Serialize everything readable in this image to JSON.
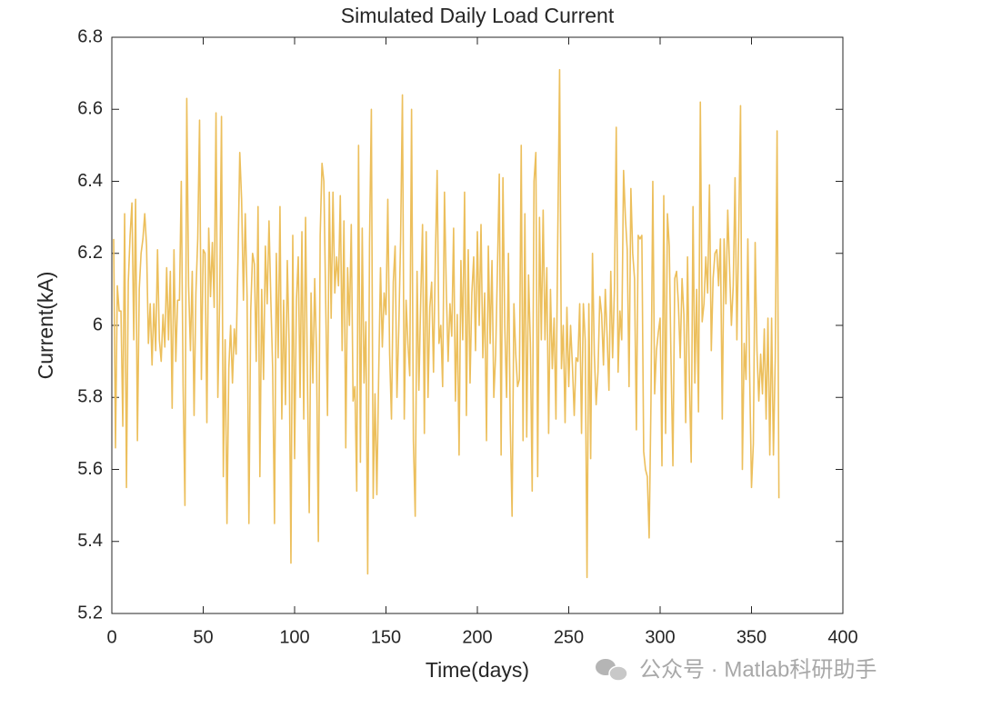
{
  "chart_data": {
    "type": "line",
    "title": "Simulated Daily Load Current",
    "x_label": "Time(days)",
    "y_label": "Current(kA)",
    "watermark": "公众号 · Matlab科研助手",
    "color": "#ecbf5c",
    "xlim": [
      0,
      400
    ],
    "xticks": [
      0,
      50,
      100,
      150,
      200,
      250,
      300,
      350,
      400
    ],
    "ylim": [
      5.2,
      6.8
    ],
    "yticks": [
      5.2,
      5.4,
      5.6,
      5.8,
      6,
      6.2,
      6.4,
      6.6,
      6.8
    ],
    "x": [
      1,
      2,
      3,
      4,
      5,
      6,
      7,
      8,
      9,
      10,
      11,
      12,
      13,
      14,
      15,
      16,
      17,
      18,
      19,
      20,
      21,
      22,
      23,
      24,
      25,
      26,
      27,
      28,
      29,
      30,
      31,
      32,
      33,
      34,
      35,
      36,
      37,
      38,
      39,
      40,
      41,
      42,
      43,
      44,
      45,
      46,
      47,
      48,
      49,
      50,
      51,
      52,
      53,
      54,
      55,
      56,
      57,
      58,
      59,
      60,
      61,
      62,
      63,
      64,
      65,
      66,
      67,
      68,
      69,
      70,
      71,
      72,
      73,
      74,
      75,
      76,
      77,
      78,
      79,
      80,
      81,
      82,
      83,
      84,
      85,
      86,
      87,
      88,
      89,
      90,
      91,
      92,
      93,
      94,
      95,
      96,
      97,
      98,
      99,
      100,
      101,
      102,
      103,
      104,
      105,
      106,
      107,
      108,
      109,
      110,
      111,
      112,
      113,
      114,
      115,
      116,
      117,
      118,
      119,
      120,
      121,
      122,
      123,
      124,
      125,
      126,
      127,
      128,
      129,
      130,
      131,
      132,
      133,
      134,
      135,
      136,
      137,
      138,
      139,
      140,
      141,
      142,
      143,
      144,
      145,
      146,
      147,
      148,
      149,
      150,
      151,
      152,
      153,
      154,
      155,
      156,
      157,
      158,
      159,
      160,
      161,
      162,
      163,
      164,
      165,
      166,
      167,
      168,
      169,
      170,
      171,
      172,
      173,
      174,
      175,
      176,
      177,
      178,
      179,
      180,
      181,
      182,
      183,
      184,
      185,
      186,
      187,
      188,
      189,
      190,
      191,
      192,
      193,
      194,
      195,
      196,
      197,
      198,
      199,
      200,
      201,
      202,
      203,
      204,
      205,
      206,
      207,
      208,
      209,
      210,
      211,
      212,
      213,
      214,
      215,
      216,
      217,
      218,
      219,
      220,
      221,
      222,
      223,
      224,
      225,
      226,
      227,
      228,
      229,
      230,
      231,
      232,
      233,
      234,
      235,
      236,
      237,
      238,
      239,
      240,
      241,
      242,
      243,
      244,
      245,
      246,
      247,
      248,
      249,
      250,
      251,
      252,
      253,
      254,
      255,
      256,
      257,
      258,
      259,
      260,
      261,
      262,
      263,
      264,
      265,
      266,
      267,
      268,
      269,
      270,
      271,
      272,
      273,
      274,
      275,
      276,
      277,
      278,
      279,
      280,
      281,
      282,
      283,
      284,
      285,
      286,
      287,
      288,
      289,
      290,
      291,
      292,
      293,
      294,
      295,
      296,
      297,
      298,
      299,
      300,
      301,
      302,
      303,
      304,
      305,
      306,
      307,
      308,
      309,
      310,
      311,
      312,
      313,
      314,
      315,
      316,
      317,
      318,
      319,
      320,
      321,
      322,
      323,
      324,
      325,
      326,
      327,
      328,
      329,
      330,
      331,
      332,
      333,
      334,
      335,
      336,
      337,
      338,
      339,
      340,
      341,
      342,
      343,
      344,
      345,
      346,
      347,
      348,
      349,
      350,
      351,
      352,
      353,
      354,
      355,
      356,
      357,
      358,
      359,
      360,
      361,
      362,
      363,
      364,
      365
    ],
    "values": [
      6.24,
      5.66,
      6.11,
      6.04,
      6.04,
      5.72,
      6.31,
      5.55,
      6.12,
      6.25,
      6.34,
      5.96,
      6.35,
      5.68,
      6.1,
      6.2,
      6.24,
      6.31,
      6.22,
      5.95,
      6.06,
      5.89,
      6.06,
      5.93,
      6.21,
      5.96,
      5.9,
      6.03,
      5.94,
      6.16,
      5.96,
      6.15,
      5.77,
      6.21,
      5.9,
      6.07,
      6.07,
      6.4,
      5.83,
      5.5,
      6.63,
      6.11,
      5.93,
      6.15,
      5.75,
      6.09,
      6.24,
      6.57,
      5.85,
      6.21,
      6.2,
      5.73,
      6.27,
      6.08,
      6.23,
      6.05,
      6.59,
      5.8,
      6.07,
      6.58,
      5.58,
      5.96,
      5.45,
      5.88,
      6.0,
      5.84,
      5.99,
      5.92,
      6.18,
      6.48,
      6.35,
      6.07,
      6.31,
      6.08,
      5.45,
      6.04,
      6.2,
      6.17,
      5.9,
      6.33,
      5.58,
      6.1,
      5.85,
      6.22,
      6.06,
      6.29,
      6.07,
      5.88,
      5.45,
      6.2,
      5.91,
      6.33,
      5.74,
      6.07,
      5.78,
      6.18,
      5.95,
      5.34,
      6.25,
      5.63,
      6.07,
      6.19,
      5.8,
      6.26,
      5.74,
      6.3,
      5.86,
      5.48,
      6.09,
      5.84,
      6.13,
      5.92,
      5.4,
      6.25,
      6.45,
      6.4,
      6.07,
      5.75,
      6.37,
      6.02,
      6.37,
      6.09,
      6.19,
      6.11,
      6.36,
      5.93,
      6.29,
      5.66,
      6.16,
      6.0,
      6.28,
      5.79,
      5.83,
      5.54,
      6.5,
      5.62,
      6.27,
      5.84,
      6.01,
      5.31,
      6.23,
      6.6,
      5.52,
      5.81,
      5.53,
      5.86,
      6.16,
      5.94,
      6.09,
      6.03,
      6.35,
      5.92,
      5.74,
      6.12,
      6.22,
      5.8,
      5.99,
      6.24,
      6.64,
      5.74,
      6.07,
      5.95,
      5.86,
      6.6,
      5.68,
      5.47,
      6.15,
      5.82,
      6.07,
      6.28,
      5.7,
      6.26,
      5.8,
      6.05,
      6.12,
      5.87,
      6.18,
      6.43,
      5.95,
      6.0,
      5.83,
      6.37,
      6.1,
      5.9,
      6.06,
      5.97,
      6.27,
      5.79,
      6.03,
      5.64,
      6.18,
      5.96,
      6.37,
      5.75,
      6.21,
      5.84,
      6.09,
      6.19,
      5.93,
      6.26,
      6.0,
      6.28,
      5.91,
      6.09,
      5.68,
      6.22,
      5.95,
      6.18,
      5.8,
      5.92,
      6.16,
      6.42,
      5.64,
      6.41,
      6.0,
      5.8,
      6.2,
      5.73,
      5.47,
      6.06,
      5.92,
      5.83,
      5.85,
      6.5,
      5.68,
      6.31,
      5.69,
      6.14,
      5.95,
      5.54,
      6.4,
      6.48,
      5.58,
      6.3,
      5.96,
      6.32,
      5.96,
      6.16,
      5.7,
      6.1,
      5.88,
      6.02,
      5.74,
      6.25,
      6.71,
      5.88,
      6.0,
      5.73,
      6.05,
      5.83,
      6.0,
      5.89,
      5.75,
      5.91,
      5.9,
      6.06,
      5.7,
      6.06,
      5.96,
      5.3,
      6.06,
      5.63,
      6.2,
      5.92,
      5.78,
      5.87,
      6.08,
      6.03,
      5.89,
      6.1,
      5.97,
      5.82,
      6.15,
      5.91,
      6.1,
      6.55,
      5.87,
      6.04,
      5.96,
      6.43,
      6.3,
      6.21,
      5.83,
      6.38,
      6.2,
      6.13,
      5.71,
      6.25,
      6.24,
      6.25,
      5.65,
      5.6,
      5.58,
      5.41,
      5.79,
      6.4,
      5.81,
      5.93,
      5.98,
      6.02,
      5.61,
      6.36,
      5.7,
      6.31,
      6.22,
      5.89,
      5.61,
      6.13,
      6.15,
      6.06,
      5.91,
      6.13,
      6.03,
      5.73,
      6.19,
      5.85,
      5.62,
      6.33,
      5.84,
      6.1,
      5.76,
      6.62,
      6.01,
      6.06,
      6.19,
      6.09,
      6.39,
      5.93,
      6.13,
      6.2,
      6.21,
      6.11,
      6.24,
      5.74,
      6.24,
      6.06,
      6.32,
      6.16,
      6.0,
      6.11,
      6.41,
      5.96,
      6.26,
      6.61,
      5.6,
      5.95,
      5.85,
      6.24,
      5.86,
      5.55,
      5.67,
      6.23,
      5.93,
      5.79,
      5.92,
      5.81,
      5.99,
      5.74,
      6.02,
      5.64,
      6.02,
      5.64,
      5.91,
      6.54,
      5.52
    ]
  }
}
